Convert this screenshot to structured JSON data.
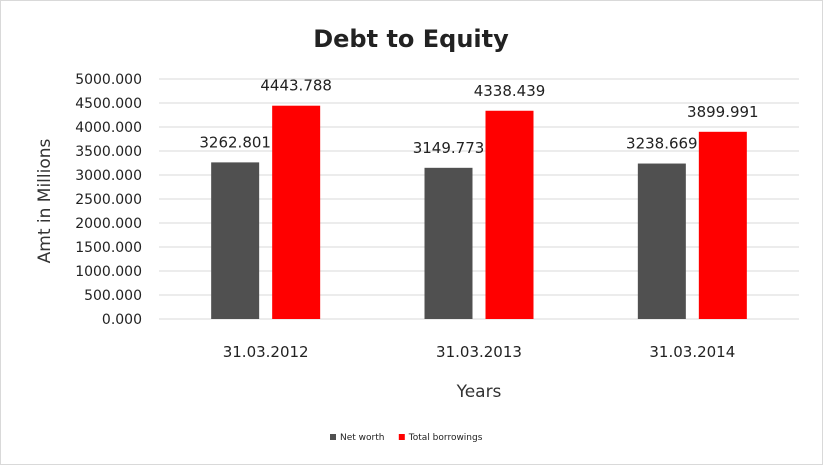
{
  "chart_data": {
    "type": "bar",
    "title": "Debt to Equity",
    "xlabel": "Years",
    "ylabel": "Amt in Millions",
    "categories": [
      "31.03.2012",
      "31.03.2013",
      "31.03.2014"
    ],
    "series": [
      {
        "name": "Net worth",
        "color": "#505050",
        "values": [
          3262.801,
          3149.773,
          3238.669
        ]
      },
      {
        "name": "Total borrowings",
        "color": "#ff0000",
        "values": [
          4443.788,
          4338.439,
          3899.991
        ]
      }
    ],
    "ylim": [
      0,
      5000
    ],
    "yticks": [
      "0.000",
      "500.000",
      "1000.000",
      "1500.000",
      "2000.000",
      "2500.000",
      "3000.000",
      "3500.000",
      "4000.000",
      "4500.000",
      "5000.000"
    ],
    "grid": true,
    "legend": "bottom"
  }
}
